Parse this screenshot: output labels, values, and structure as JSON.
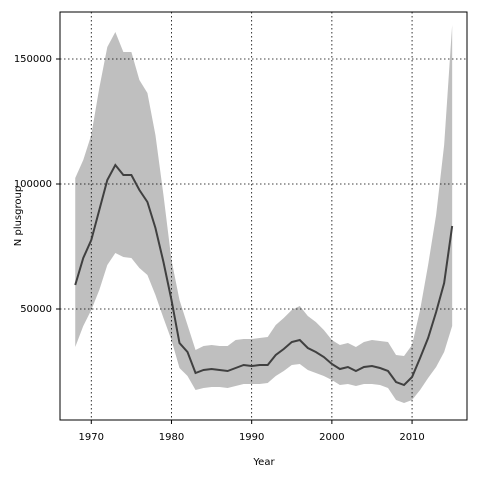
{
  "chart_data": {
    "type": "line",
    "xlabel": "Year",
    "ylabel": "N plusgroup",
    "x": [
      1968,
      1969,
      1970,
      1971,
      1972,
      1973,
      1974,
      1975,
      1976,
      1977,
      1978,
      1979,
      1980,
      1981,
      1982,
      1983,
      1984,
      1985,
      1986,
      1987,
      1988,
      1989,
      1990,
      1991,
      1992,
      1993,
      1994,
      1995,
      1996,
      1997,
      1998,
      1999,
      2000,
      2001,
      2002,
      2003,
      2004,
      2005,
      2006,
      2007,
      2008,
      2009,
      2010,
      2011,
      2012,
      2013,
      2014,
      2015
    ],
    "series": [
      {
        "color": "#404040",
        "band_color": "#bfbfbf",
        "values": [
          59600,
          70400,
          77600,
          89600,
          101600,
          107600,
          103600,
          103600,
          97600,
          92800,
          82400,
          68800,
          53600,
          36400,
          32800,
          24400,
          25600,
          26000,
          25600,
          25200,
          26400,
          27600,
          27200,
          27600,
          27600,
          31600,
          34000,
          36800,
          37600,
          34400,
          32800,
          30800,
          28000,
          26000,
          26800,
          25200,
          26800,
          27200,
          26400,
          25200,
          20800,
          19600,
          22800,
          30400,
          38400,
          48800,
          60400,
          83200
        ],
        "upper": [
          102400,
          109600,
          119600,
          138400,
          154800,
          160800,
          152800,
          152800,
          141600,
          136400,
          119600,
          95600,
          69600,
          53600,
          43600,
          33600,
          35200,
          35600,
          35200,
          35200,
          37600,
          38000,
          38000,
          38400,
          38800,
          43600,
          46400,
          49600,
          51200,
          47200,
          44800,
          41600,
          37600,
          35600,
          36400,
          34800,
          36800,
          37600,
          37200,
          36800,
          31600,
          31200,
          35600,
          49600,
          67600,
          87600,
          115600,
          163600
        ],
        "lower": [
          34800,
          43200,
          49600,
          57600,
          67600,
          72400,
          70800,
          70400,
          66400,
          63600,
          55600,
          46400,
          37600,
          26400,
          23200,
          17600,
          18400,
          18800,
          18800,
          18400,
          19200,
          20000,
          20000,
          20000,
          20400,
          23200,
          25200,
          27600,
          28000,
          25600,
          24400,
          23200,
          21600,
          19600,
          20000,
          19200,
          20000,
          20000,
          19600,
          18400,
          13600,
          12400,
          13600,
          17600,
          22400,
          26800,
          32800,
          43200
        ]
      }
    ],
    "xlim": [
      1966.1,
      2016.85
    ],
    "xticks": [
      1970,
      1980,
      1990,
      2000,
      2010
    ],
    "ylim": [
      5600,
      168800
    ],
    "yticks": [
      50000,
      100000,
      150000
    ],
    "grid": true
  }
}
